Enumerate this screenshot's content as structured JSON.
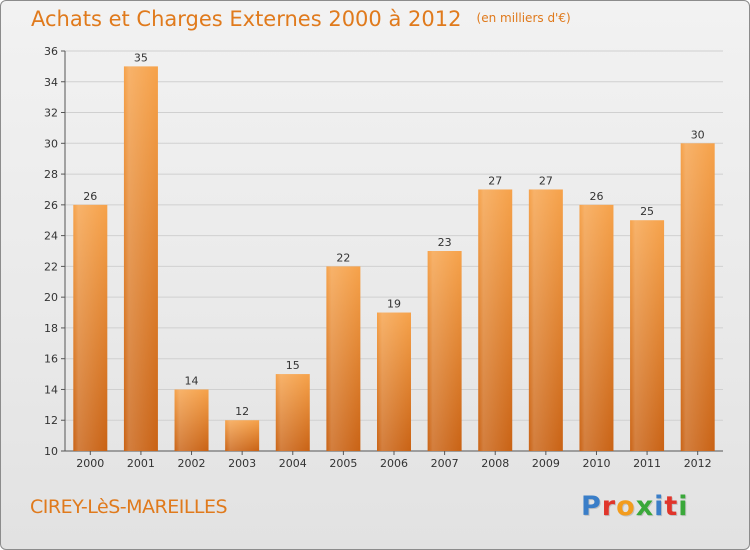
{
  "title": "Achats et Charges Externes 2000 à 2012",
  "subtitle": "(en milliers d'€)",
  "commune": "CIREY-LèS-MAREILLES",
  "logo": {
    "text": "Proxiti",
    "colors": [
      "#3a7ec8",
      "#e0352b",
      "#f39c1d",
      "#3aa83a",
      "#3a7ec8",
      "#e0352b",
      "#3aa83a"
    ]
  },
  "colors": {
    "accent": "#e07a1c",
    "bar_top": "#f6a24a",
    "bar_bottom": "#c96214"
  },
  "chart_data": {
    "type": "bar",
    "categories": [
      "2000",
      "2001",
      "2002",
      "2003",
      "2004",
      "2005",
      "2006",
      "2007",
      "2008",
      "2009",
      "2010",
      "2011",
      "2012"
    ],
    "values": [
      26,
      35,
      14,
      12,
      15,
      22,
      19,
      23,
      27,
      27,
      26,
      25,
      30
    ],
    "ylim": [
      10,
      36
    ],
    "yticks": [
      10,
      12,
      14,
      16,
      18,
      20,
      22,
      24,
      26,
      28,
      30,
      32,
      34,
      36
    ],
    "grid": true,
    "data_labels": true
  }
}
